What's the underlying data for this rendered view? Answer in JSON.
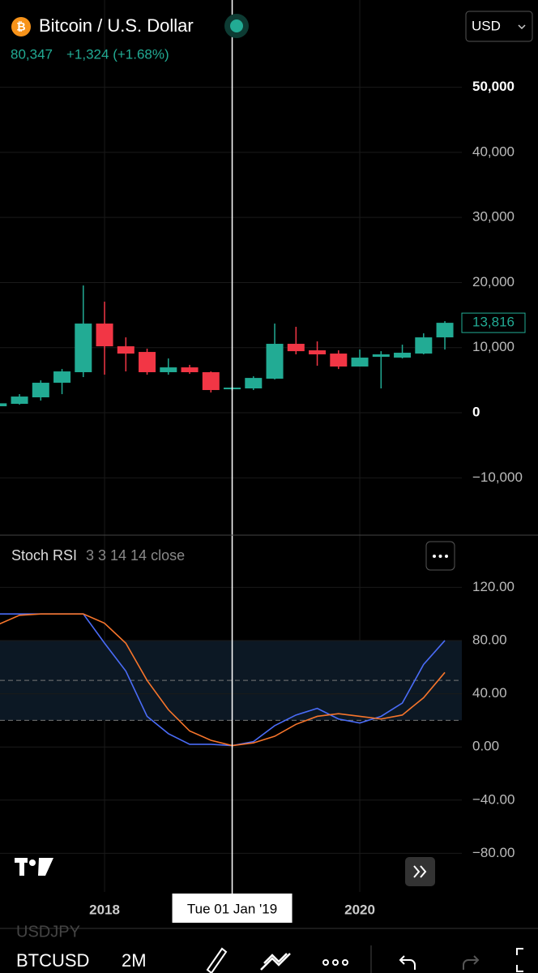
{
  "header": {
    "title": "Bitcoin / U.S. Dollar",
    "price": "80,347",
    "change": "+1,324 (+1.68%)",
    "currency": "USD"
  },
  "chart_data": [
    {
      "type": "candlestick",
      "categories": [
        null,
        null,
        null,
        null,
        null,
        "2018",
        null,
        null,
        null,
        null,
        null,
        "Tue 01 Jan '19",
        null,
        null,
        null,
        null,
        null,
        "2020",
        null,
        null,
        null,
        null
      ],
      "open": [
        1000,
        1370,
        2370,
        4610,
        6230,
        13700,
        10210,
        9340,
        6230,
        6970,
        6230,
        3610,
        3740,
        5230,
        10590,
        9590,
        9090,
        7100,
        8590,
        8470,
        9090,
        11580
      ],
      "high": [
        1500,
        2860,
        4980,
        6720,
        19550,
        17060,
        11580,
        9840,
        8340,
        7350,
        6350,
        3990,
        5600,
        13700,
        13200,
        10960,
        9590,
        9710,
        9460,
        10460,
        12200,
        14070
      ],
      "low": [
        950,
        1250,
        1870,
        2860,
        5480,
        5850,
        6350,
        5850,
        5850,
        5980,
        3110,
        3360,
        3490,
        5110,
        8970,
        7220,
        6720,
        7100,
        3740,
        8340,
        8970,
        9710
      ],
      "close": [
        1450,
        2490,
        4610,
        6350,
        13700,
        10210,
        9090,
        6230,
        6970,
        6230,
        3490,
        3860,
        5350,
        10590,
        9460,
        8970,
        7100,
        8470,
        8970,
        9220,
        11580,
        13816
      ],
      "last_label": "13,816",
      "up_color": "#22ab94",
      "down_color": "#f23645",
      "ylim": [
        -18800,
        63400
      ],
      "yticks": [
        {
          "value": -10000,
          "label": "−10,000"
        },
        0,
        {
          "value": 10000,
          "label": "10,000"
        },
        {
          "value": 20000,
          "label": "20,000"
        },
        {
          "value": 30000,
          "label": "30,000"
        },
        {
          "value": 40000,
          "label": "40,000"
        },
        {
          "value": 50000,
          "label": "50,000"
        }
      ],
      "grid": true
    },
    {
      "type": "line",
      "title": "Stoch RSI",
      "subtitle": "3 3 14 14 close",
      "series": [
        {
          "color": "#4a6cf7",
          "values": [
            100,
            100,
            100,
            100,
            100,
            78,
            57,
            23,
            10,
            2,
            2,
            1,
            4,
            16,
            24,
            29,
            21,
            18,
            23,
            33,
            62,
            80
          ]
        },
        {
          "color": "#f7752b",
          "values": [
            92,
            99,
            100,
            100,
            100,
            93,
            78,
            50,
            28,
            12,
            5,
            1,
            3,
            8,
            17,
            23,
            25,
            23,
            21,
            24,
            37,
            56
          ]
        }
      ],
      "bands": [
        80,
        50,
        20
      ],
      "ylim": [
        -109,
        158
      ],
      "yticks": [
        {
          "value": -80,
          "label": "−80.00"
        },
        {
          "value": -40,
          "label": "−40.00"
        },
        {
          "value": 0,
          "label": "0.00"
        },
        {
          "value": 40,
          "label": "40.00"
        },
        {
          "value": 80,
          "label": "80.00"
        },
        {
          "value": 120,
          "label": "120.00"
        }
      ]
    }
  ],
  "toolbar": {
    "symbol": "BTCUSD",
    "interval": "2M",
    "ghost": "USDJPY"
  }
}
